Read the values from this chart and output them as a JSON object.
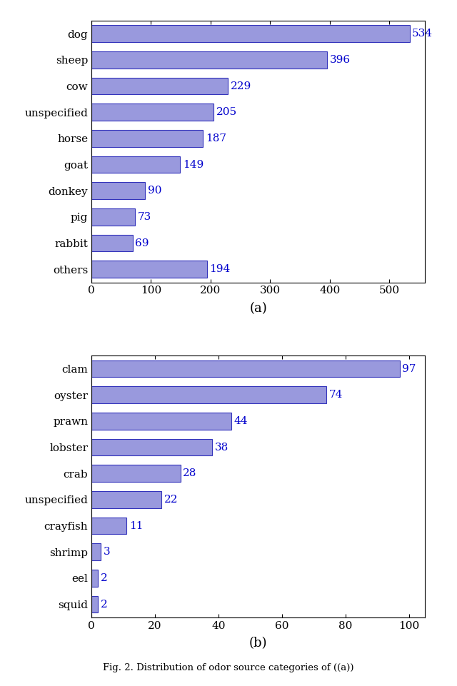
{
  "chart_a": {
    "categories": [
      "dog",
      "sheep",
      "cow",
      "unspecified",
      "horse",
      "goat",
      "donkey",
      "pig",
      "rabbit",
      "others"
    ],
    "values": [
      534,
      396,
      229,
      205,
      187,
      149,
      90,
      73,
      69,
      194
    ],
    "xlim": [
      0,
      560
    ],
    "xticks": [
      0,
      100,
      200,
      300,
      400,
      500
    ],
    "xlabel_label": "(a)"
  },
  "chart_b": {
    "categories": [
      "clam",
      "oyster",
      "prawn",
      "lobster",
      "crab",
      "unspecified",
      "crayfish",
      "shrimp",
      "eel",
      "squid"
    ],
    "values": [
      97,
      74,
      44,
      38,
      28,
      22,
      11,
      3,
      2,
      2
    ],
    "xlim": [
      0,
      105
    ],
    "xticks": [
      0,
      20,
      40,
      60,
      80,
      100
    ],
    "xlabel_label": "(b)"
  },
  "bar_color": "#9999dd",
  "bar_edge_color": "#3333bb",
  "value_text_color": "#0000cc",
  "font_family": "DejaVu Serif",
  "bar_height": 0.65,
  "value_fontsize": 11,
  "tick_fontsize": 11,
  "caption_fontsize": 13,
  "background_color": "#ffffff"
}
